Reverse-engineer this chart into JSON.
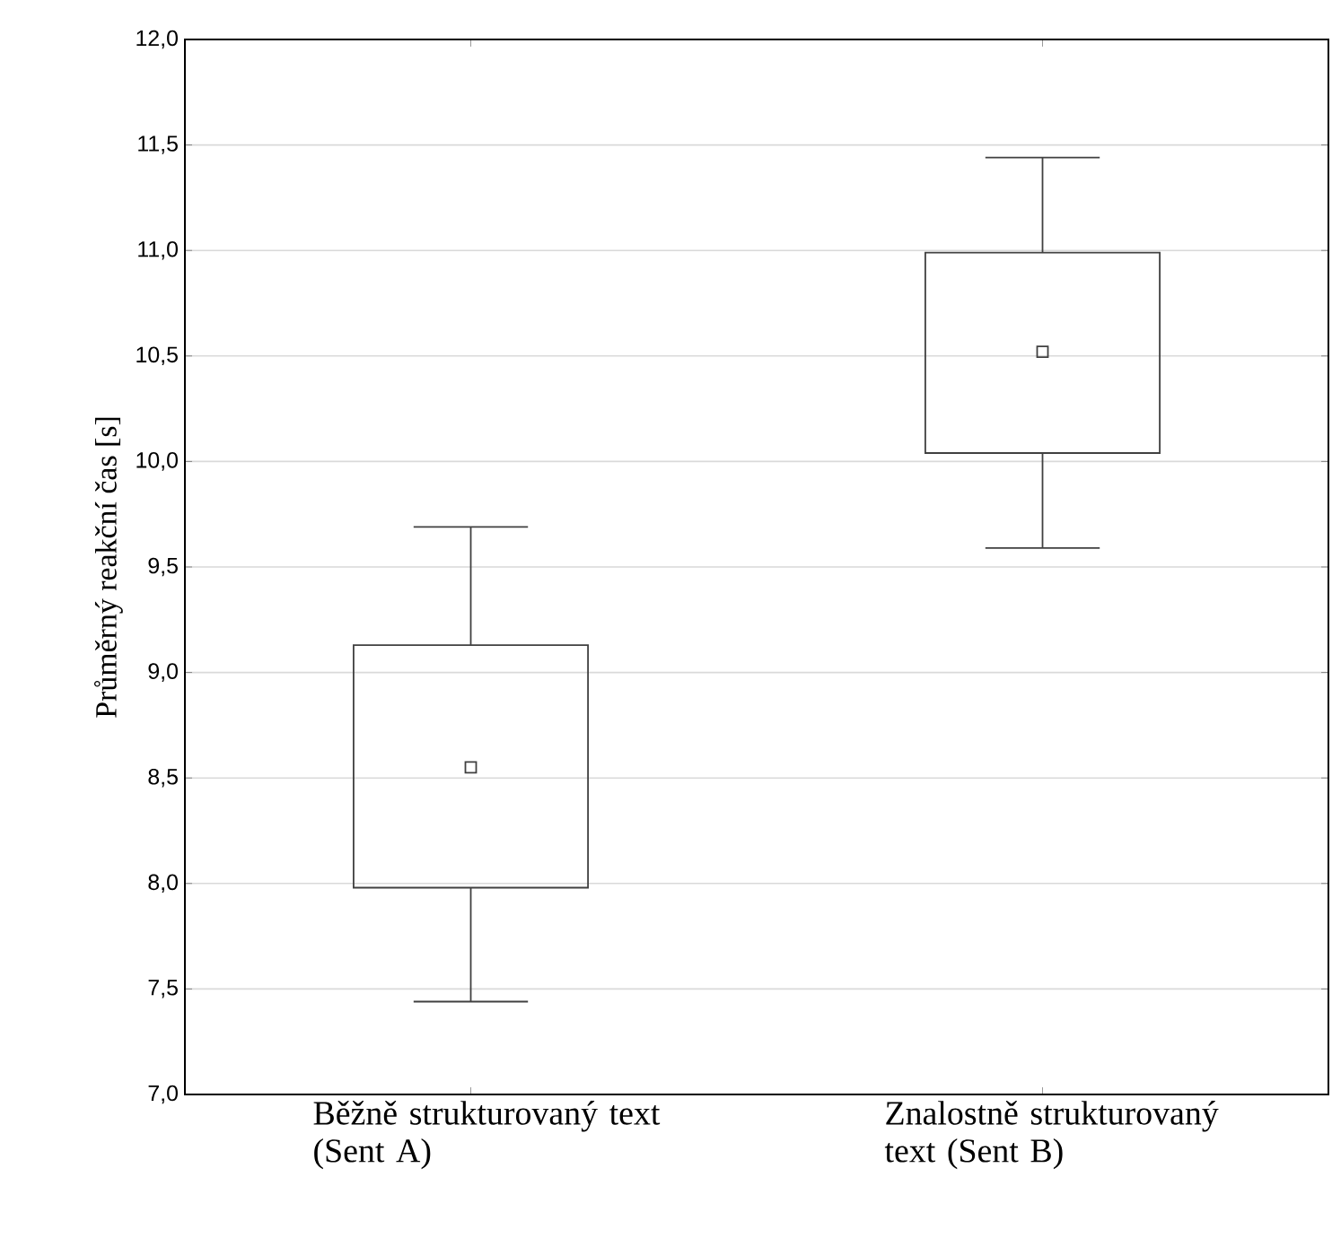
{
  "chart_data": {
    "type": "box",
    "ylabel": "Průměrný reakční čas [s]",
    "categories": [
      "Běžně strukturovaný text (Sent A)",
      "Znalostně strukturovaný text (Sent B)"
    ],
    "boxes": [
      {
        "low": 7.44,
        "q1": 7.98,
        "median": 8.55,
        "q3": 9.13,
        "high": 9.69
      },
      {
        "low": 9.59,
        "q1": 10.04,
        "median": 10.52,
        "q3": 10.99,
        "high": 11.44
      }
    ],
    "color": "#404040",
    "ylim": [
      7.0,
      12.0
    ],
    "yticks": [
      {
        "value": 7.0,
        "label": "7,0"
      },
      {
        "value": 7.5,
        "label": "7,5"
      },
      {
        "value": 8.0,
        "label": "8,0"
      },
      {
        "value": 8.5,
        "label": "8,5"
      },
      {
        "value": 9.0,
        "label": "9,0"
      },
      {
        "value": 9.5,
        "label": "9,5"
      },
      {
        "value": 10.0,
        "label": "10,0"
      },
      {
        "value": 10.5,
        "label": "10,5"
      },
      {
        "value": 11.0,
        "label": "11,0"
      },
      {
        "value": 11.5,
        "label": "11,5"
      },
      {
        "value": 12.0,
        "label": "12,0"
      }
    ],
    "grid": "y",
    "marker": "square"
  }
}
